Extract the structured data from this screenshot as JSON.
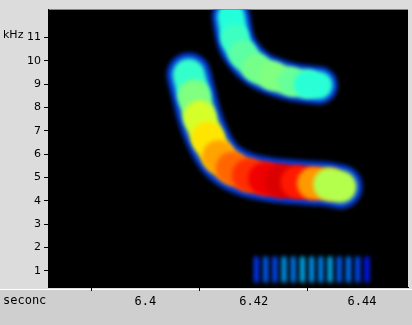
{
  "chart_data": {
    "type": "spectrogram",
    "x_label": "seconc",
    "y_label": "kHz",
    "xlim": [
      6.382,
      6.4485
    ],
    "xticks": [
      6.4,
      6.42,
      6.44
    ],
    "ylim": [
      0.3,
      12.2
    ],
    "yticks": [
      1,
      2,
      3,
      4,
      5,
      6,
      7,
      8,
      9,
      10,
      11
    ],
    "grid": false,
    "zlim": [
      0,
      1
    ],
    "series": [
      {
        "type": "line",
        "x": [
          6.408,
          6.409,
          6.41,
          6.4115,
          6.4135,
          6.416,
          6.419,
          6.422,
          6.425,
          6.428,
          6.431,
          6.434,
          6.436
        ],
        "y": [
          9.4,
          8.5,
          7.6,
          6.7,
          5.9,
          5.4,
          5.1,
          4.95,
          4.85,
          4.8,
          4.75,
          4.7,
          4.6
        ],
        "intensity": [
          0.4,
          0.45,
          0.55,
          0.62,
          0.68,
          0.75,
          0.8,
          0.86,
          0.92,
          0.9,
          0.8,
          0.65,
          0.45
        ],
        "bandwidth": 1.4
      },
      {
        "type": "line",
        "x": [
          6.4158,
          6.4165,
          6.418,
          6.4205,
          6.4235,
          6.427,
          6.43,
          6.432
        ],
        "y": [
          11.9,
          11.0,
          10.3,
          9.7,
          9.35,
          9.1,
          9.0,
          8.95
        ],
        "intensity": [
          0.4,
          0.42,
          0.45,
          0.48,
          0.5,
          0.5,
          0.45,
          0.38
        ],
        "bandwidth": 1.2
      },
      {
        "type": "bar",
        "x": [
          6.4205,
          6.4222,
          6.4239,
          6.4256,
          6.4273,
          6.429,
          6.4307,
          6.4324,
          6.4341,
          6.4358,
          6.4375,
          6.4392,
          6.4409
        ],
        "y_range": [
          0.5,
          1.6
        ],
        "intensity": [
          0.18,
          0.22,
          0.2,
          0.28,
          0.25,
          0.3,
          0.28,
          0.26,
          0.3,
          0.22,
          0.24,
          0.2,
          0.15
        ]
      }
    ]
  }
}
